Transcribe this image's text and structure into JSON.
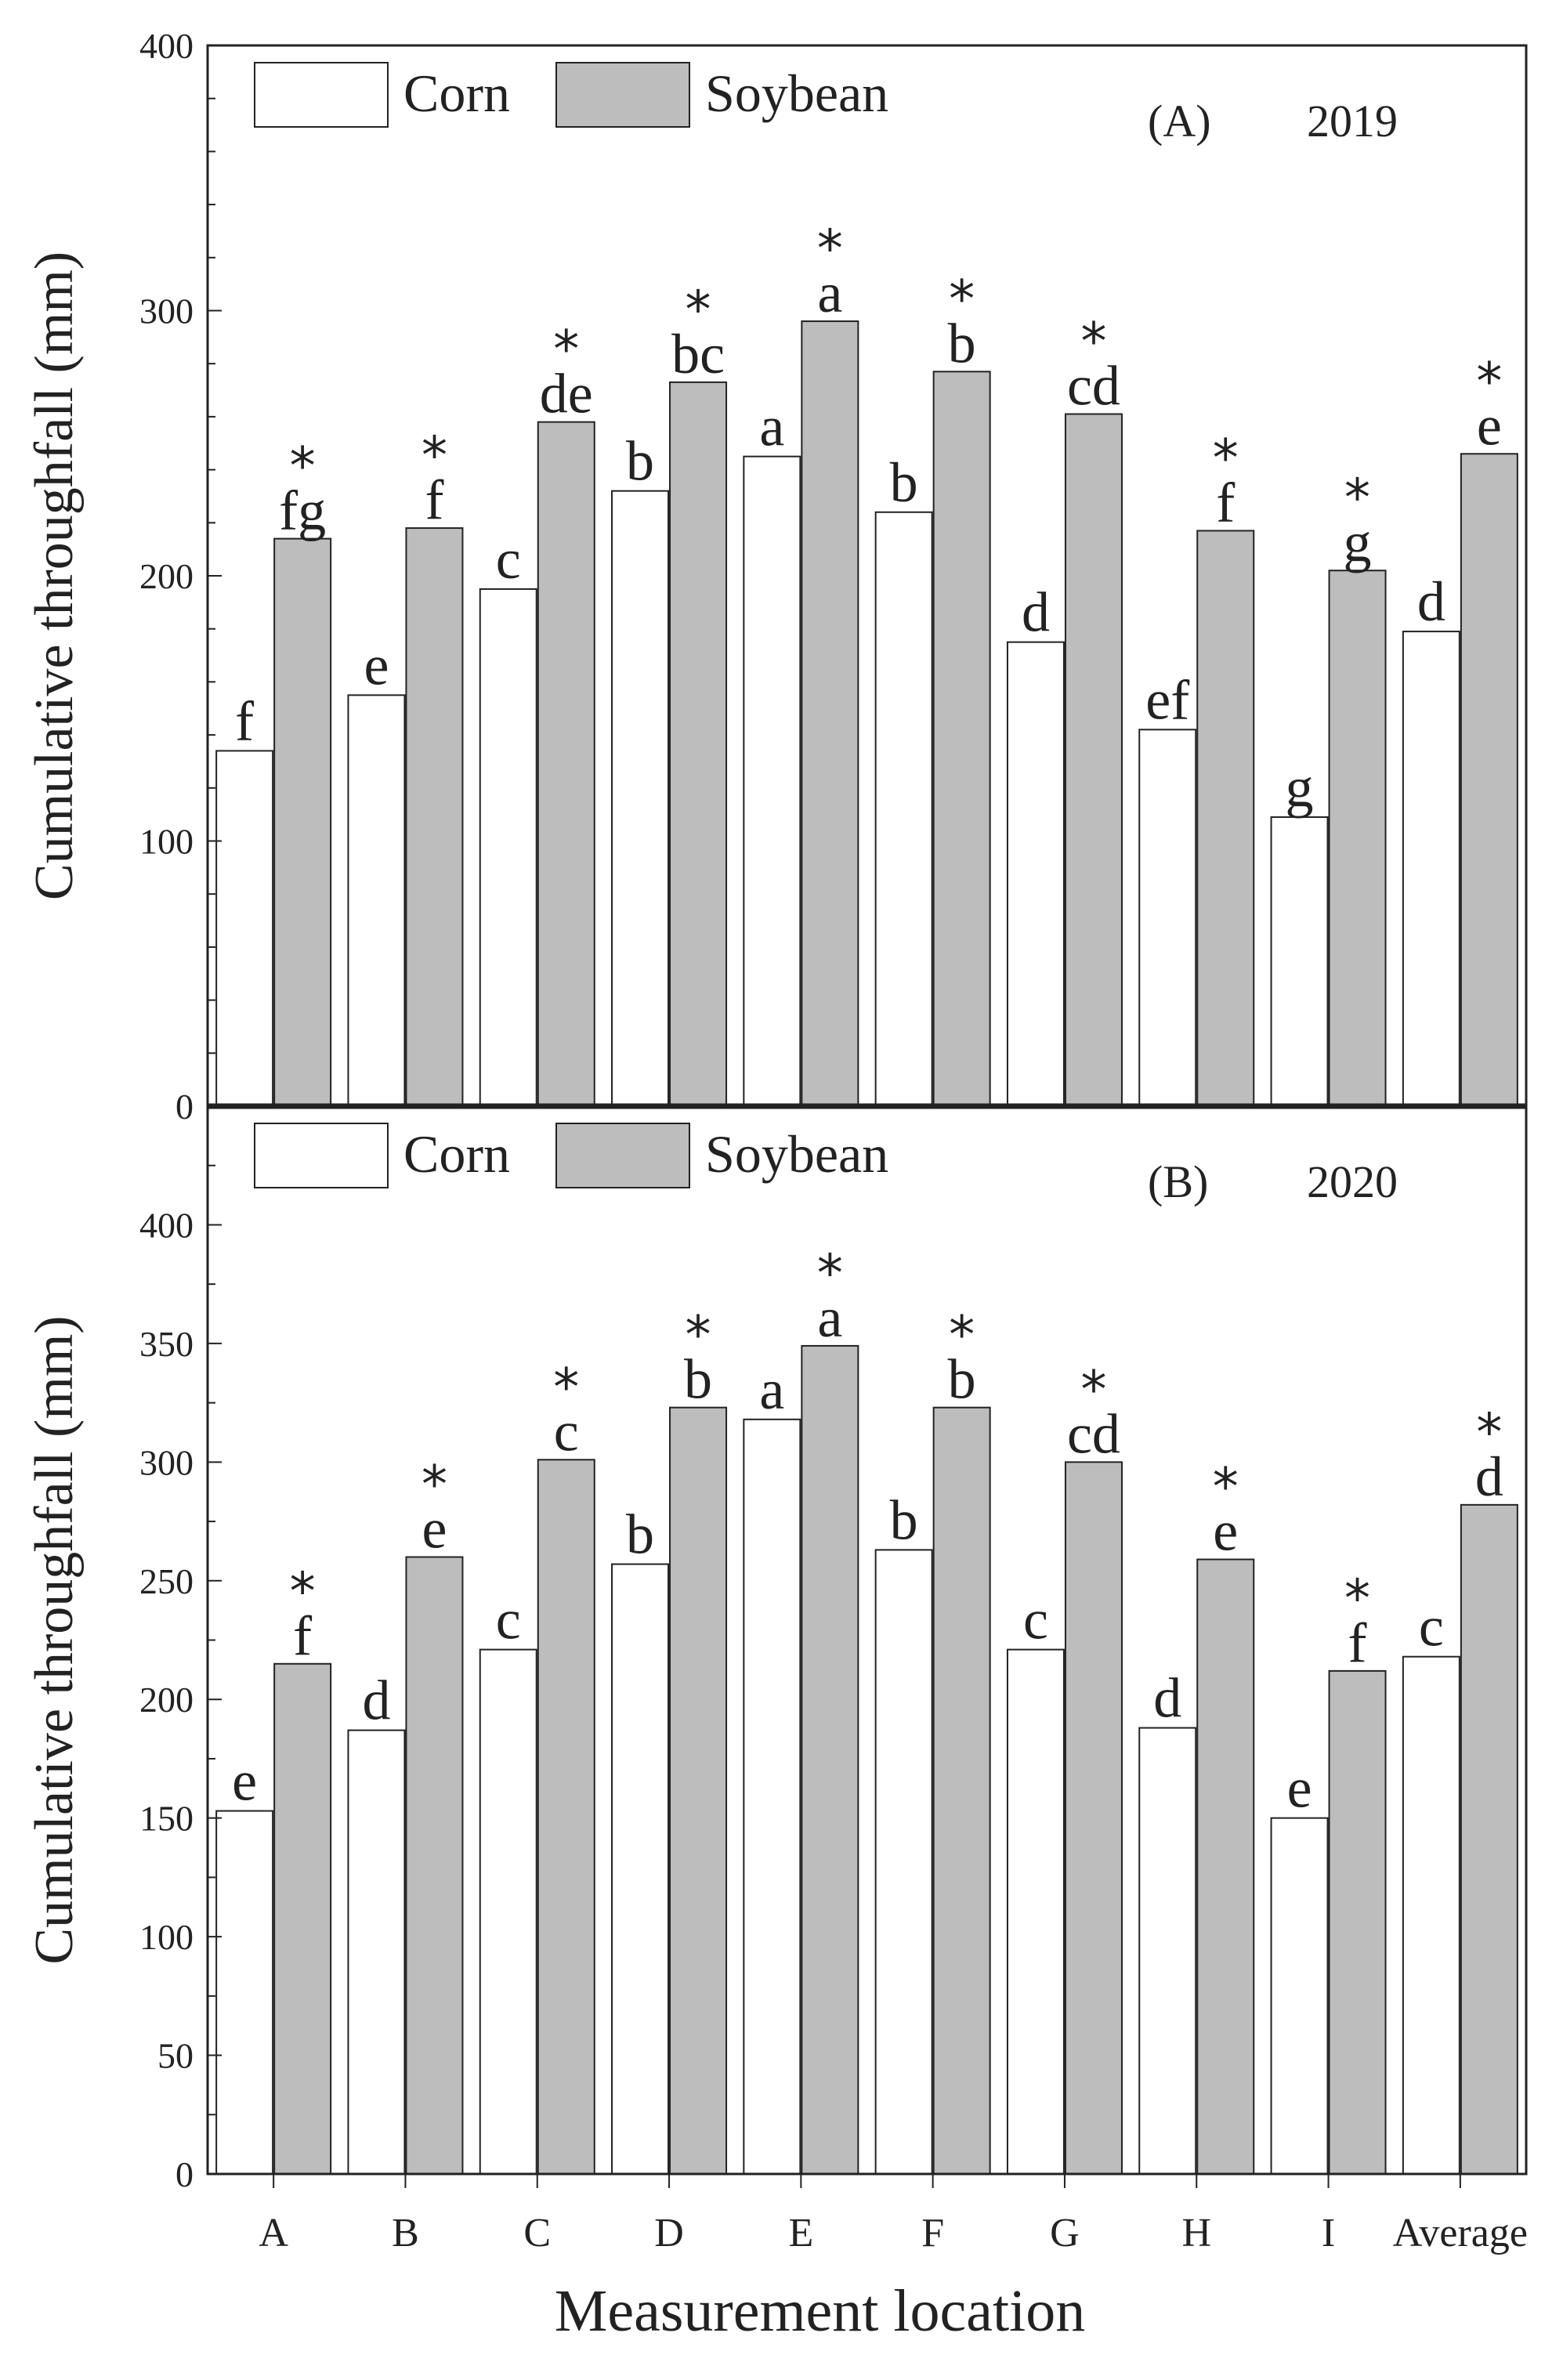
{
  "chart_data": [
    {
      "type": "bar",
      "panel": "(A)",
      "year": "2019",
      "ylabel": "Cumulative throughfall (mm)",
      "xlabel": "Measurement location",
      "ylim": [
        0,
        400
      ],
      "yticks": [
        0,
        100,
        200,
        300,
        400
      ],
      "categories": [
        "A",
        "B",
        "C",
        "D",
        "E",
        "F",
        "G",
        "H",
        "I",
        "Average"
      ],
      "legend": [
        "Corn",
        "Soybean"
      ],
      "colors": {
        "corn": "#ffffff",
        "soybean": "#bdbdbd"
      },
      "series": [
        {
          "name": "Corn",
          "values": [
            134,
            155,
            195,
            232,
            245,
            224,
            175,
            142,
            109,
            179
          ],
          "letters": [
            "f",
            "e",
            "c",
            "b",
            "a",
            "b",
            "d",
            "ef",
            "g",
            "d"
          ]
        },
        {
          "name": "Soybean",
          "values": [
            214,
            218,
            258,
            273,
            296,
            277,
            261,
            217,
            202,
            246
          ],
          "letters": [
            "fg",
            "f",
            "de",
            "bc",
            "a",
            "b",
            "cd",
            "f",
            "g",
            "e"
          ],
          "marks": [
            "*",
            "*",
            "*",
            "*",
            "*",
            "*",
            "*",
            "*",
            "*",
            "*"
          ]
        }
      ]
    },
    {
      "type": "bar",
      "panel": "(B)",
      "year": "2020",
      "ylabel": "Cumulative throughfall (mm)",
      "xlabel": "Measurement location",
      "ylim": [
        0,
        450
      ],
      "yticks": [
        0,
        50,
        100,
        150,
        200,
        250,
        300,
        350,
        400
      ],
      "categories": [
        "A",
        "B",
        "C",
        "D",
        "E",
        "F",
        "G",
        "H",
        "I",
        "Average"
      ],
      "legend": [
        "Corn",
        "Soybean"
      ],
      "colors": {
        "corn": "#ffffff",
        "soybean": "#bdbdbd"
      },
      "series": [
        {
          "name": "Corn",
          "values": [
            153,
            187,
            221,
            257,
            318,
            263,
            221,
            188,
            150,
            218
          ],
          "letters": [
            "e",
            "d",
            "c",
            "b",
            "a",
            "b",
            "c",
            "d",
            "e",
            "c"
          ]
        },
        {
          "name": "Soybean",
          "values": [
            215,
            260,
            301,
            323,
            349,
            323,
            300,
            259,
            212,
            282
          ],
          "letters": [
            "f",
            "e",
            "c",
            "b",
            "a",
            "b",
            "cd",
            "e",
            "f",
            "d"
          ],
          "marks": [
            "*",
            "*",
            "*",
            "*",
            "*",
            "*",
            "*",
            "*",
            "*",
            "*"
          ]
        }
      ]
    }
  ],
  "x_axis_title": "Measurement location"
}
